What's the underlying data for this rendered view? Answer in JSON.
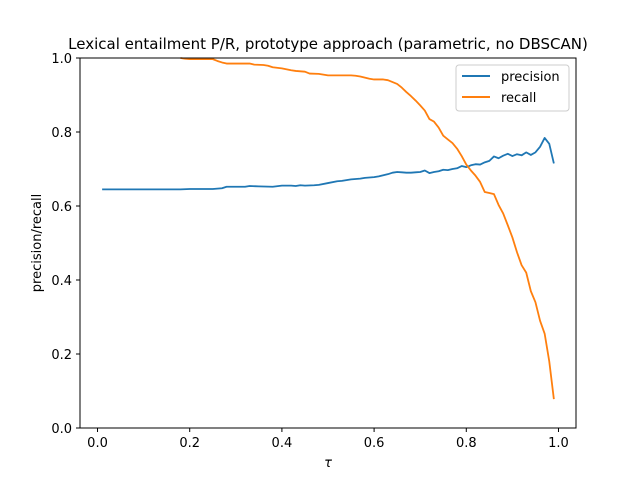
{
  "chart_data": {
    "type": "line",
    "title": "Lexical entailment P/R, prototype approach (parametric, no DBSCAN)",
    "xlabel": "τ",
    "ylabel": "precision/recall",
    "xlim": [
      -0.038,
      1.038
    ],
    "ylim": [
      0.0,
      1.0
    ],
    "xticks": [
      "0.0",
      "0.2",
      "0.4",
      "0.6",
      "0.8",
      "1.0"
    ],
    "yticks": [
      "0.0",
      "0.2",
      "0.4",
      "0.6",
      "0.8",
      "1.0"
    ],
    "legend_position": "upper right",
    "grid": false,
    "series": [
      {
        "name": "precision",
        "color": "#1f77b4",
        "points": [
          [
            0.01,
            0.645
          ],
          [
            0.05,
            0.645
          ],
          [
            0.1,
            0.645
          ],
          [
            0.15,
            0.645
          ],
          [
            0.18,
            0.645
          ],
          [
            0.2,
            0.646
          ],
          [
            0.25,
            0.646
          ],
          [
            0.27,
            0.648
          ],
          [
            0.28,
            0.652
          ],
          [
            0.3,
            0.652
          ],
          [
            0.32,
            0.652
          ],
          [
            0.33,
            0.654
          ],
          [
            0.35,
            0.653
          ],
          [
            0.38,
            0.652
          ],
          [
            0.4,
            0.655
          ],
          [
            0.42,
            0.655
          ],
          [
            0.43,
            0.654
          ],
          [
            0.44,
            0.656
          ],
          [
            0.45,
            0.655
          ],
          [
            0.47,
            0.656
          ],
          [
            0.48,
            0.657
          ],
          [
            0.5,
            0.662
          ],
          [
            0.52,
            0.667
          ],
          [
            0.53,
            0.668
          ],
          [
            0.55,
            0.672
          ],
          [
            0.57,
            0.674
          ],
          [
            0.58,
            0.676
          ],
          [
            0.6,
            0.678
          ],
          [
            0.61,
            0.68
          ],
          [
            0.62,
            0.683
          ],
          [
            0.63,
            0.686
          ],
          [
            0.64,
            0.69
          ],
          [
            0.65,
            0.692
          ],
          [
            0.66,
            0.691
          ],
          [
            0.67,
            0.69
          ],
          [
            0.68,
            0.69
          ],
          [
            0.69,
            0.691
          ],
          [
            0.7,
            0.692
          ],
          [
            0.71,
            0.696
          ],
          [
            0.72,
            0.689
          ],
          [
            0.73,
            0.692
          ],
          [
            0.74,
            0.694
          ],
          [
            0.75,
            0.698
          ],
          [
            0.76,
            0.697
          ],
          [
            0.77,
            0.7
          ],
          [
            0.78,
            0.702
          ],
          [
            0.79,
            0.708
          ],
          [
            0.8,
            0.705
          ],
          [
            0.81,
            0.71
          ],
          [
            0.82,
            0.713
          ],
          [
            0.83,
            0.712
          ],
          [
            0.84,
            0.718
          ],
          [
            0.85,
            0.722
          ],
          [
            0.86,
            0.734
          ],
          [
            0.87,
            0.729
          ],
          [
            0.88,
            0.736
          ],
          [
            0.89,
            0.741
          ],
          [
            0.9,
            0.735
          ],
          [
            0.91,
            0.74
          ],
          [
            0.92,
            0.737
          ],
          [
            0.93,
            0.745
          ],
          [
            0.94,
            0.738
          ],
          [
            0.95,
            0.745
          ],
          [
            0.96,
            0.76
          ],
          [
            0.97,
            0.784
          ],
          [
            0.98,
            0.768
          ],
          [
            0.99,
            0.715
          ]
        ]
      },
      {
        "name": "recall",
        "color": "#ff7f0e",
        "points": [
          [
            0.18,
            1.0
          ],
          [
            0.19,
            0.998
          ],
          [
            0.2,
            0.997
          ],
          [
            0.25,
            0.997
          ],
          [
            0.26,
            0.992
          ],
          [
            0.27,
            0.988
          ],
          [
            0.28,
            0.985
          ],
          [
            0.3,
            0.985
          ],
          [
            0.33,
            0.985
          ],
          [
            0.34,
            0.982
          ],
          [
            0.36,
            0.981
          ],
          [
            0.37,
            0.979
          ],
          [
            0.38,
            0.975
          ],
          [
            0.4,
            0.972
          ],
          [
            0.42,
            0.967
          ],
          [
            0.43,
            0.965
          ],
          [
            0.45,
            0.963
          ],
          [
            0.46,
            0.958
          ],
          [
            0.48,
            0.957
          ],
          [
            0.49,
            0.955
          ],
          [
            0.5,
            0.953
          ],
          [
            0.52,
            0.953
          ],
          [
            0.55,
            0.953
          ],
          [
            0.56,
            0.952
          ],
          [
            0.57,
            0.95
          ],
          [
            0.58,
            0.947
          ],
          [
            0.59,
            0.944
          ],
          [
            0.6,
            0.942
          ],
          [
            0.61,
            0.942
          ],
          [
            0.62,
            0.942
          ],
          [
            0.63,
            0.94
          ],
          [
            0.64,
            0.935
          ],
          [
            0.65,
            0.93
          ],
          [
            0.66,
            0.92
          ],
          [
            0.67,
            0.908
          ],
          [
            0.68,
            0.897
          ],
          [
            0.69,
            0.885
          ],
          [
            0.7,
            0.872
          ],
          [
            0.71,
            0.858
          ],
          [
            0.72,
            0.835
          ],
          [
            0.73,
            0.828
          ],
          [
            0.74,
            0.812
          ],
          [
            0.75,
            0.79
          ],
          [
            0.76,
            0.78
          ],
          [
            0.77,
            0.77
          ],
          [
            0.78,
            0.755
          ],
          [
            0.79,
            0.735
          ],
          [
            0.8,
            0.712
          ],
          [
            0.81,
            0.696
          ],
          [
            0.82,
            0.682
          ],
          [
            0.83,
            0.665
          ],
          [
            0.84,
            0.638
          ],
          [
            0.85,
            0.635
          ],
          [
            0.86,
            0.632
          ],
          [
            0.87,
            0.603
          ],
          [
            0.88,
            0.58
          ],
          [
            0.89,
            0.548
          ],
          [
            0.9,
            0.515
          ],
          [
            0.91,
            0.475
          ],
          [
            0.92,
            0.44
          ],
          [
            0.93,
            0.42
          ],
          [
            0.94,
            0.37
          ],
          [
            0.95,
            0.34
          ],
          [
            0.96,
            0.29
          ],
          [
            0.97,
            0.255
          ],
          [
            0.98,
            0.18
          ],
          [
            0.99,
            0.078
          ]
        ]
      }
    ]
  }
}
